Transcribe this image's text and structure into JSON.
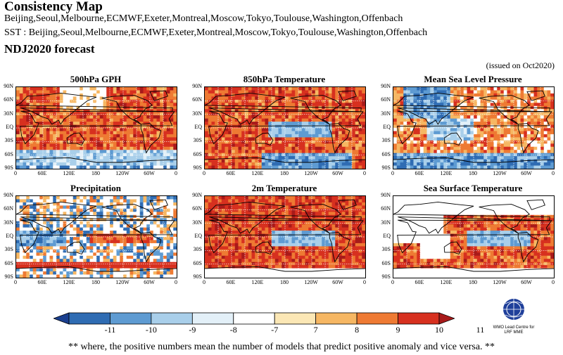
{
  "header": {
    "title": "Consistency Map",
    "models_line": "Beijing,Seoul,Melbourne,ECMWF,Exeter,Montreal,Moscow,Tokyo,Toulouse,Washington,Offenbach",
    "sst_line": "SST : Beijing,Seoul,Melbourne,ECMWF,Exeter,Montreal,Moscow,Tokyo,Toulouse,Washington,Offenbach",
    "forecast": "NDJ2020 forecast",
    "issued": "(issued on Oct2020)"
  },
  "panels": [
    {
      "title": "500hPa GPH",
      "theme": "gph"
    },
    {
      "title": "850hPa Temperature",
      "theme": "t850"
    },
    {
      "title": "Mean Sea Level Pressure",
      "theme": "mslp"
    },
    {
      "title": "Precipitation",
      "theme": "prec"
    },
    {
      "title": "2m Temperature",
      "theme": "t2m"
    },
    {
      "title": "Sea Surface Temperature",
      "theme": "sst"
    }
  ],
  "axes": {
    "lat_labels": [
      "90N",
      "60N",
      "30N",
      "EQ",
      "30S",
      "60S",
      "90S"
    ],
    "lon_labels": [
      "0",
      "60E",
      "120E",
      "180",
      "120W",
      "60W",
      "0"
    ]
  },
  "colorbar": {
    "labels": [
      "-11",
      "-10",
      "-9",
      "-8",
      "-7",
      "7",
      "8",
      "9",
      "10",
      "11"
    ],
    "colors": [
      "#1a3f8f",
      "#2f6cb3",
      "#5e9bd2",
      "#a9cfea",
      "#e3f0f8",
      "#ffffff",
      "#fbe7b5",
      "#f6b763",
      "#ee7a33",
      "#d7301f",
      "#a81a1a"
    ]
  },
  "logo": {
    "line1": "WMO Lead Centre for",
    "line2": "LRF MME"
  },
  "footer": "** where, the positive numbers mean the number of models that predict positive anomaly and vice versa. **"
}
